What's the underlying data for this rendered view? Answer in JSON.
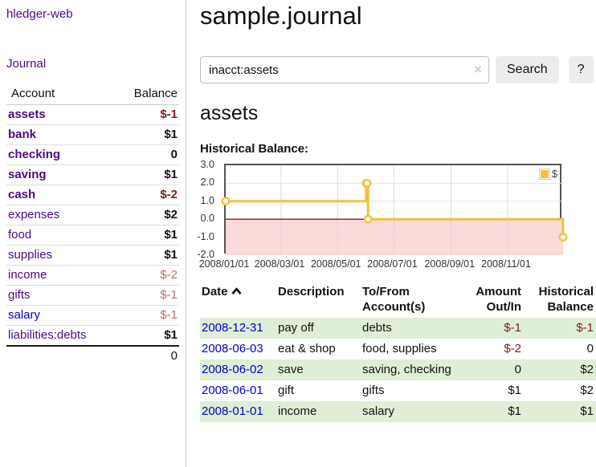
{
  "colors": {
    "accent_purple": "#4b0a85",
    "link_blue": "#0000cc",
    "negative_strong": "#8b1717",
    "negative_soft": "#bf6b6b",
    "row_stripe": "#dfeed7",
    "chart_gold": "#edc240",
    "chart_negative_bg": "#fbdada",
    "zero_line": "#8c1a1a",
    "grid_line": "#d8d8d8"
  },
  "brand": "hledger-web",
  "sidebar": {
    "journal_link": "Journal",
    "table": {
      "headers": [
        "Account",
        "Balance"
      ],
      "rows": [
        {
          "name": "assets",
          "indent": 1,
          "bold": true,
          "link": "purple",
          "balance": "$-1",
          "bal_class": "neg",
          "bal_bold": true
        },
        {
          "name": "bank",
          "indent": 2,
          "bold": true,
          "link": "purple",
          "balance": "$1",
          "bal_class": "",
          "bal_bold": true
        },
        {
          "name": "checking",
          "indent": 3,
          "bold": true,
          "link": "purple",
          "balance": "0",
          "bal_class": "",
          "bal_bold": true
        },
        {
          "name": "saving",
          "indent": 3,
          "bold": true,
          "link": "purple",
          "balance": "$1",
          "bal_class": "",
          "bal_bold": true
        },
        {
          "name": "cash",
          "indent": 2,
          "bold": true,
          "link": "purple",
          "balance": "$-2",
          "bal_class": "neg",
          "bal_bold": true
        },
        {
          "name": "expenses",
          "indent": 1,
          "bold": false,
          "link": "purple",
          "balance": "$2",
          "bal_class": "",
          "bal_bold": true
        },
        {
          "name": "food",
          "indent": 2,
          "bold": false,
          "link": "purple",
          "balance": "$1",
          "bal_class": "",
          "bal_bold": true
        },
        {
          "name": "supplies",
          "indent": 2,
          "bold": false,
          "link": "purple",
          "balance": "$1",
          "bal_class": "",
          "bal_bold": true
        },
        {
          "name": "income",
          "indent": 1,
          "bold": false,
          "link": "purple",
          "balance": "$-2",
          "bal_class": "negsoft",
          "bal_bold": false
        },
        {
          "name": "gifts",
          "indent": 2,
          "bold": false,
          "link": "purple",
          "balance": "$-1",
          "bal_class": "negsoft",
          "bal_bold": false
        },
        {
          "name": "salary",
          "indent": 2,
          "bold": false,
          "link": "blue",
          "balance": "$-1",
          "bal_class": "negsoft",
          "bal_bold": false
        },
        {
          "name": "liabilities:debts",
          "indent": 1,
          "bold": false,
          "link": "purple",
          "balance": "$1",
          "bal_class": "",
          "bal_bold": true
        }
      ],
      "total": "0"
    }
  },
  "header": {
    "title": "sample.journal"
  },
  "search": {
    "value": "inacct:assets",
    "clear_icon": "×",
    "button_label": "Search",
    "help_label": "?"
  },
  "account_page": {
    "heading": "assets",
    "chart_label": "Historical Balance:"
  },
  "chart_data": {
    "type": "line",
    "title": "Historical Balance",
    "style": "step",
    "series": [
      {
        "name": "$",
        "color": "#edc240",
        "points": [
          [
            "2008-01-01",
            1
          ],
          [
            "2008-06-01",
            2
          ],
          [
            "2008-06-02",
            2
          ],
          [
            "2008-06-03",
            0
          ],
          [
            "2008-12-31",
            -1
          ]
        ]
      }
    ],
    "xlim": [
      "2008-01-01",
      "2008-12-31"
    ],
    "ylim": [
      -2,
      3
    ],
    "yticks": [
      "3.0",
      "2.0",
      "1.0",
      "0.0",
      "-1.0",
      "-2.0"
    ],
    "xticks": [
      "2008/01/01",
      "2008/03/01",
      "2008/05/01",
      "2008/07/01",
      "2008/09/01",
      "2008/11/01"
    ],
    "legend_position": "top-right",
    "grid": true
  },
  "transactions": {
    "headers": {
      "date": "Date",
      "description": "Description",
      "accounts": "To/From Account(s)",
      "amount": "Amount Out/In",
      "balance": "Historical Balance"
    },
    "rows": [
      {
        "date": "2008-12-31",
        "description": "pay off",
        "accounts": "debts",
        "amount": "$-1",
        "balance": "$-1"
      },
      {
        "date": "2008-06-03",
        "description": "eat & shop",
        "accounts": "food, supplies",
        "amount": "$-2",
        "balance": "0"
      },
      {
        "date": "2008-06-02",
        "description": "save",
        "accounts": "saving, checking",
        "amount": "0",
        "balance": "$2"
      },
      {
        "date": "2008-06-01",
        "description": "gift",
        "accounts": "gifts",
        "amount": "$1",
        "balance": "$2"
      },
      {
        "date": "2008-01-01",
        "description": "income",
        "accounts": "salary",
        "amount": "$1",
        "balance": "$1"
      }
    ]
  }
}
